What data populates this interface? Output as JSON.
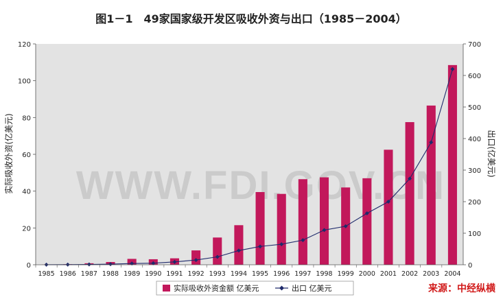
{
  "chart_data": {
    "type": "bar",
    "title": "图1－1　49家国家级开发区吸收外资与出口（1985－2004）",
    "categories": [
      "1985",
      "1986",
      "1987",
      "1988",
      "1989",
      "1990",
      "1991",
      "1992",
      "1993",
      "1994",
      "1995",
      "1996",
      "1997",
      "1998",
      "1999",
      "2000",
      "2001",
      "2002",
      "2003",
      "2004"
    ],
    "series": [
      {
        "name": "实际吸收外资金额 亿美元",
        "type": "bar",
        "axis": "left",
        "color": "#c2185b",
        "values": [
          0.1,
          0.3,
          0.8,
          1.5,
          3.2,
          3.0,
          3.5,
          7.8,
          14.8,
          21.5,
          39.5,
          38.5,
          46.5,
          47.5,
          42.0,
          47.0,
          62.5,
          77.5,
          86.5,
          108.5
        ]
      },
      {
        "name": "出口 亿美元",
        "type": "line",
        "axis": "right",
        "color": "#1f2a6b",
        "values": [
          0.2,
          0.5,
          1,
          2,
          4,
          5,
          9,
          15,
          25,
          45,
          58,
          65,
          78,
          110,
          122,
          163,
          200,
          273,
          388,
          620
        ]
      }
    ],
    "ylabel": "实际吸收外资(亿美元)",
    "y2label": "出口(亿美元)",
    "ylim": [
      0,
      120
    ],
    "y2lim": [
      0,
      700
    ],
    "yticks": [
      "0",
      "20",
      "40",
      "60",
      "80",
      "100",
      "120"
    ],
    "y2ticks": [
      "0",
      "100",
      "200",
      "300",
      "400",
      "500",
      "600",
      "700"
    ],
    "legend_position": "bottom",
    "grid": false
  },
  "watermark": "WWW.FDI.GOV.CN",
  "source": "来源：中经纵横",
  "colors": {
    "plot_bg": "#e3e3e3",
    "bar": "#c2185b",
    "line": "#1f2a6b",
    "source_text": "#d11a1a",
    "watermark": "#b8b8b8"
  }
}
